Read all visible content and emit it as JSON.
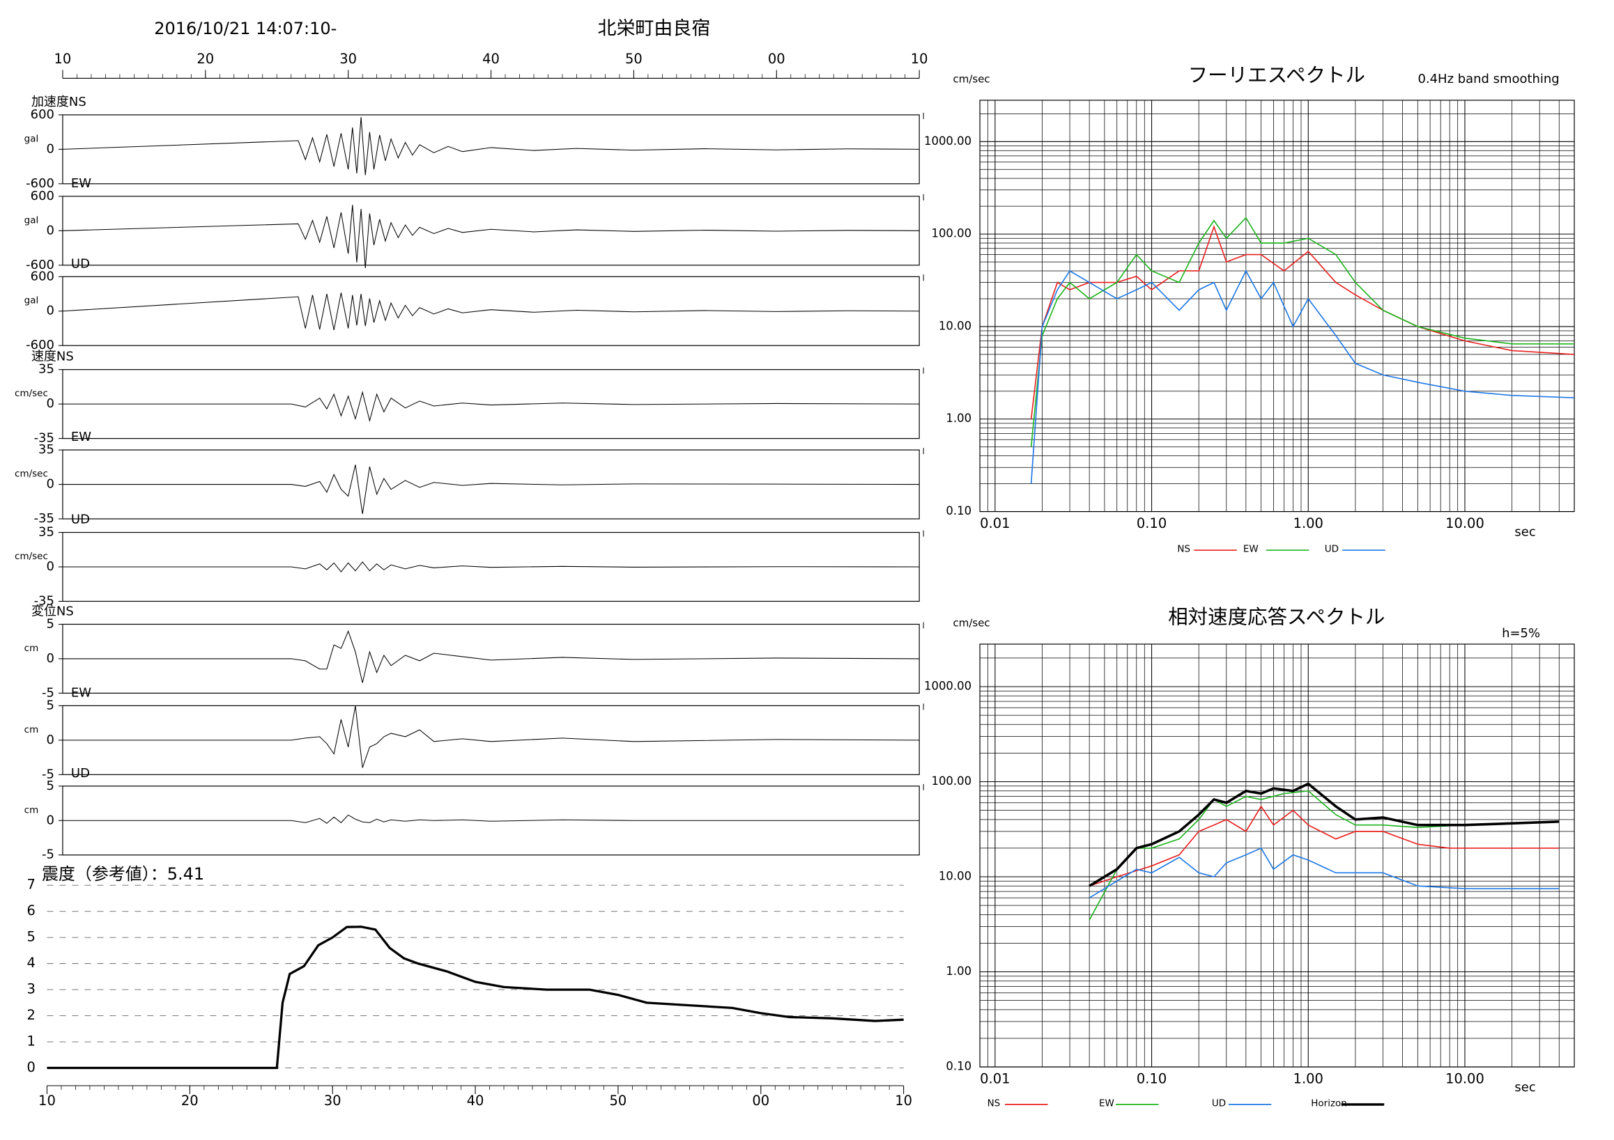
{
  "header": {
    "datetime": "2016/10/21 14:07:10-",
    "station": "北栄町由良宿"
  },
  "chart_data": [
    {
      "type": "line",
      "title": "加速度NS",
      "ylabel": "gal",
      "xlim": [
        0,
        60
      ],
      "ylim": [
        -600,
        600
      ],
      "yticks": [
        -600,
        0,
        600
      ],
      "xticks": [
        {
          "value": 0,
          "label": "10"
        },
        {
          "value": 10,
          "label": "20"
        },
        {
          "value": 20,
          "label": "30"
        },
        {
          "value": 30,
          "label": "40"
        },
        {
          "value": 40,
          "label": "50"
        },
        {
          "value": 50,
          "label": "00"
        },
        {
          "value": 60,
          "label": "10"
        }
      ],
      "x": [
        0,
        16.5,
        17,
        17.5,
        18,
        18.5,
        19,
        19.5,
        20,
        20.3,
        20.6,
        20.9,
        21.2,
        21.5,
        21.8,
        22.2,
        22.6,
        23,
        23.5,
        24,
        24.5,
        25,
        26,
        27,
        28,
        30,
        33,
        36,
        40,
        45,
        50,
        55,
        60
      ],
      "values": [
        0,
        150,
        -180,
        200,
        -220,
        260,
        -300,
        280,
        -350,
        380,
        -420,
        560,
        -450,
        300,
        -350,
        250,
        -200,
        180,
        -150,
        120,
        -100,
        80,
        -60,
        50,
        -40,
        30,
        -20,
        15,
        -15,
        10,
        -10,
        8,
        0
      ]
    },
    {
      "type": "line",
      "title": "EW",
      "ylabel": "gal",
      "xlim": [
        0,
        60
      ],
      "ylim": [
        -600,
        600
      ],
      "yticks": [
        -600,
        0,
        600
      ],
      "x": [
        0,
        16.5,
        17,
        17.5,
        18,
        18.5,
        19,
        19.5,
        20,
        20.3,
        20.6,
        20.9,
        21.2,
        21.5,
        21.8,
        22.2,
        22.6,
        23,
        23.5,
        24,
        24.5,
        25,
        26,
        27,
        28,
        30,
        33,
        36,
        40,
        45,
        50,
        55,
        60
      ],
      "values": [
        0,
        120,
        -150,
        180,
        -200,
        250,
        -300,
        320,
        -400,
        450,
        -550,
        380,
        -650,
        300,
        -250,
        200,
        -180,
        140,
        -120,
        100,
        -80,
        60,
        -50,
        40,
        -30,
        25,
        -20,
        15,
        -12,
        10,
        -8,
        6,
        0
      ]
    },
    {
      "type": "line",
      "title": "UD",
      "ylabel": "gal",
      "xlim": [
        0,
        60
      ],
      "ylim": [
        -600,
        600
      ],
      "yticks": [
        -600,
        0,
        600
      ],
      "x": [
        0,
        16.5,
        17,
        17.5,
        18,
        18.5,
        19,
        19.5,
        20,
        20.3,
        20.6,
        20.9,
        21.2,
        21.5,
        21.8,
        22.2,
        22.6,
        23,
        23.5,
        24,
        24.5,
        25,
        26,
        27,
        28,
        30,
        33,
        36,
        40,
        45,
        50,
        55,
        60
      ],
      "values": [
        0,
        250,
        -300,
        280,
        -320,
        300,
        -330,
        320,
        -300,
        280,
        -250,
        300,
        -260,
        220,
        -200,
        180,
        -160,
        140,
        -120,
        100,
        -80,
        60,
        -50,
        40,
        -30,
        25,
        -20,
        15,
        -12,
        10,
        -8,
        6,
        0
      ]
    },
    {
      "type": "line",
      "title": "速度NS",
      "ylabel": "cm/sec",
      "xlim": [
        0,
        60
      ],
      "ylim": [
        -35,
        35
      ],
      "yticks": [
        -35,
        0,
        35
      ],
      "x": [
        0,
        16,
        17,
        18,
        18.5,
        19,
        19.5,
        20,
        20.5,
        21,
        21.5,
        22,
        22.5,
        23,
        24,
        25,
        26,
        28,
        30,
        35,
        40,
        50,
        60
      ],
      "values": [
        0,
        0,
        -3,
        6,
        -5,
        10,
        -12,
        8,
        -15,
        12,
        -17,
        10,
        -8,
        6,
        -4,
        3,
        -2,
        1,
        -1,
        1,
        -0.5,
        0.5,
        0
      ]
    },
    {
      "type": "line",
      "title": "EW",
      "ylabel": "cm/sec",
      "xlim": [
        0,
        60
      ],
      "ylim": [
        -35,
        35
      ],
      "yticks": [
        -35,
        0,
        35
      ],
      "x": [
        0,
        16,
        17,
        18,
        18.5,
        19,
        19.5,
        20,
        20.5,
        21,
        21.5,
        22,
        22.5,
        23,
        24,
        25,
        26,
        28,
        30,
        35,
        40,
        50,
        60
      ],
      "values": [
        0,
        0,
        -2,
        3,
        -8,
        10,
        -5,
        -12,
        20,
        -30,
        18,
        -10,
        6,
        -5,
        4,
        -3,
        2,
        -1,
        1,
        -0.5,
        0.5,
        0.3,
        0
      ]
    },
    {
      "type": "line",
      "title": "UD",
      "ylabel": "cm/sec",
      "xlim": [
        0,
        60
      ],
      "ylim": [
        -35,
        35
      ],
      "yticks": [
        -35,
        0,
        35
      ],
      "x": [
        0,
        16,
        17,
        18,
        18.5,
        19,
        19.5,
        20,
        20.5,
        21,
        21.5,
        22,
        22.5,
        23,
        24,
        25,
        26,
        28,
        30,
        35,
        40,
        50,
        60
      ],
      "values": [
        0,
        0,
        -2,
        3,
        -3,
        4,
        -5,
        4,
        -4,
        5,
        -4,
        3,
        -3,
        2,
        -2,
        1.5,
        -1,
        1,
        -0.5,
        0.5,
        -0.3,
        0.2,
        0
      ]
    },
    {
      "type": "line",
      "title": "変位NS",
      "ylabel": "cm",
      "xlim": [
        0,
        60
      ],
      "ylim": [
        -5,
        5
      ],
      "yticks": [
        -5,
        0,
        5
      ],
      "x": [
        0,
        16,
        17,
        18,
        18.5,
        19,
        19.5,
        20,
        20.5,
        21,
        21.5,
        22,
        22.5,
        23,
        24,
        25,
        26,
        28,
        30,
        35,
        40,
        50,
        60
      ],
      "values": [
        0,
        0,
        -0.3,
        -1.5,
        -1.5,
        2,
        1.5,
        4,
        1,
        -3.5,
        1,
        -2,
        0.5,
        -1,
        0.5,
        -0.3,
        0.8,
        0.3,
        -0.2,
        0.2,
        -0.1,
        0.1,
        0
      ]
    },
    {
      "type": "line",
      "title": "EW",
      "ylabel": "cm",
      "xlim": [
        0,
        60
      ],
      "ylim": [
        -5,
        5
      ],
      "yticks": [
        -5,
        0,
        5
      ],
      "x": [
        0,
        16,
        17,
        18,
        18.5,
        19,
        19.5,
        20,
        20.5,
        21,
        21.5,
        22,
        22.5,
        23,
        24,
        25,
        26,
        28,
        30,
        35,
        40,
        50,
        60
      ],
      "values": [
        0,
        0,
        0.3,
        0.5,
        -0.5,
        -2,
        3,
        -1,
        5,
        -4,
        -1,
        -0.5,
        0.5,
        1,
        0.5,
        1.5,
        -0.2,
        0.2,
        -0.2,
        0.3,
        -0.2,
        0.1,
        0
      ]
    },
    {
      "type": "line",
      "title": "UD",
      "ylabel": "cm",
      "xlim": [
        0,
        60
      ],
      "ylim": [
        -5,
        5
      ],
      "yticks": [
        -5,
        0,
        5
      ],
      "x": [
        0,
        16,
        17,
        18,
        18.5,
        19,
        19.5,
        20,
        20.5,
        21,
        21.5,
        22,
        22.5,
        23,
        24,
        25,
        26,
        28,
        30,
        35,
        40,
        50,
        60
      ],
      "values": [
        0,
        0,
        -0.3,
        0.3,
        -0.4,
        0.5,
        -0.3,
        0.8,
        0.2,
        -0.2,
        -0.3,
        0.2,
        -0.2,
        0.1,
        -0.1,
        0.1,
        0,
        0.1,
        -0.1,
        0.1,
        0,
        0,
        0
      ]
    },
    {
      "type": "line",
      "title": "震度（参考値）：5.41",
      "xlim": [
        0,
        60
      ],
      "ylim": [
        0,
        7
      ],
      "yticks": [
        0,
        1,
        2,
        3,
        4,
        5,
        6,
        7
      ],
      "grid": true,
      "xticks": [
        {
          "value": 0,
          "label": "10"
        },
        {
          "value": 10,
          "label": "20"
        },
        {
          "value": 20,
          "label": "30"
        },
        {
          "value": 30,
          "label": "40"
        },
        {
          "value": 40,
          "label": "50"
        },
        {
          "value": 50,
          "label": "00"
        },
        {
          "value": 60,
          "label": "10"
        }
      ],
      "x": [
        0,
        16,
        16.1,
        16.5,
        17,
        18,
        19,
        20,
        21,
        22,
        23,
        24,
        25,
        26,
        28,
        30,
        32,
        35,
        38,
        40,
        42,
        45,
        48,
        50,
        52,
        55,
        58,
        60
      ],
      "values": [
        0,
        0,
        0,
        2.5,
        3.6,
        3.9,
        4.7,
        5.0,
        5.4,
        5.41,
        5.3,
        4.6,
        4.2,
        4.0,
        3.7,
        3.3,
        3.1,
        3.0,
        3.0,
        2.8,
        2.5,
        2.4,
        2.3,
        2.1,
        1.95,
        1.9,
        1.8,
        1.85
      ]
    },
    {
      "type": "line",
      "title": "フーリエスペクトル",
      "subtitle": "0.4Hz band smoothing",
      "ylabel": "cm/sec",
      "xlabel": "sec",
      "log_x": true,
      "log_y": true,
      "grid": true,
      "xlim": [
        0.008,
        50
      ],
      "ylim": [
        0.1,
        2800
      ],
      "xticks": [
        0.01,
        {
          "value": 0.1,
          "label": "0.10"
        },
        {
          "value": 1,
          "label": "1.00"
        },
        {
          "value": 10,
          "label": "10.00"
        }
      ],
      "yticks": [
        {
          "value": 0.1,
          "label": "0.10"
        },
        {
          "value": 1,
          "label": "1.00"
        },
        {
          "value": 10,
          "label": "10.00"
        },
        {
          "value": 100,
          "label": "100.00"
        },
        {
          "value": 1000,
          "label": "1000.00"
        }
      ],
      "series": [
        {
          "name": "NS",
          "color": "#e8201e",
          "x": [
            0.017,
            0.02,
            0.025,
            0.03,
            0.04,
            0.06,
            0.08,
            0.1,
            0.15,
            0.2,
            0.25,
            0.3,
            0.4,
            0.5,
            0.7,
            1.0,
            1.5,
            2,
            3,
            5,
            10,
            20,
            50
          ],
          "values": [
            1,
            10,
            30,
            25,
            30,
            30,
            35,
            25,
            40,
            40,
            120,
            50,
            60,
            60,
            40,
            65,
            30,
            22,
            15,
            10,
            7,
            5.5,
            5
          ]
        },
        {
          "name": "EW",
          "color": "#1eb41e",
          "x": [
            0.017,
            0.02,
            0.025,
            0.03,
            0.04,
            0.06,
            0.08,
            0.1,
            0.15,
            0.2,
            0.25,
            0.3,
            0.4,
            0.5,
            0.7,
            1.0,
            1.5,
            2,
            3,
            5,
            10,
            20,
            50
          ],
          "values": [
            0.5,
            8,
            20,
            30,
            20,
            30,
            60,
            40,
            30,
            80,
            140,
            90,
            150,
            80,
            80,
            90,
            60,
            30,
            15,
            10,
            7.5,
            6.5,
            6.5
          ]
        },
        {
          "name": "UD",
          "color": "#1e78e6",
          "x": [
            0.017,
            0.02,
            0.025,
            0.03,
            0.04,
            0.06,
            0.08,
            0.1,
            0.15,
            0.2,
            0.25,
            0.3,
            0.4,
            0.5,
            0.6,
            0.8,
            1.0,
            1.5,
            2,
            3,
            5,
            10,
            20,
            50
          ],
          "values": [
            0.2,
            10,
            25,
            40,
            30,
            20,
            25,
            30,
            15,
            25,
            30,
            15,
            40,
            20,
            30,
            10,
            20,
            8,
            4,
            3,
            2.5,
            2,
            1.8,
            1.7
          ]
        }
      ]
    },
    {
      "type": "line",
      "title": "相対速度応答スペクトル",
      "subtitle": "h=5%",
      "ylabel": "cm/sec",
      "xlabel": "sec",
      "log_x": true,
      "log_y": true,
      "grid": true,
      "xlim": [
        0.008,
        50
      ],
      "ylim": [
        0.1,
        2800
      ],
      "xticks": [
        0.01,
        {
          "value": 0.1,
          "label": "0.10"
        },
        {
          "value": 1,
          "label": "1.00"
        },
        {
          "value": 10,
          "label": "10.00"
        }
      ],
      "yticks": [
        {
          "value": 0.1,
          "label": "0.10"
        },
        {
          "value": 1,
          "label": "1.00"
        },
        {
          "value": 10,
          "label": "10.00"
        },
        {
          "value": 100,
          "label": "100.00"
        },
        {
          "value": 1000,
          "label": "1000.00"
        }
      ],
      "series": [
        {
          "name": "NS",
          "color": "#e8201e",
          "x": [
            0.04,
            0.06,
            0.1,
            0.15,
            0.2,
            0.25,
            0.3,
            0.4,
            0.5,
            0.6,
            0.8,
            1.0,
            1.5,
            2,
            3,
            5,
            8,
            40
          ],
          "values": [
            8,
            10,
            13,
            17,
            30,
            35,
            40,
            30,
            55,
            35,
            50,
            35,
            25,
            30,
            30,
            22,
            20,
            20
          ]
        },
        {
          "name": "EW",
          "color": "#1eb41e",
          "x": [
            0.04,
            0.06,
            0.08,
            0.1,
            0.15,
            0.2,
            0.25,
            0.3,
            0.4,
            0.5,
            0.7,
            1.0,
            1.5,
            2,
            3,
            5,
            10,
            40
          ],
          "values": [
            3.5,
            12,
            20,
            20,
            25,
            40,
            65,
            55,
            70,
            65,
            75,
            80,
            45,
            35,
            35,
            33,
            35,
            38
          ]
        },
        {
          "name": "UD",
          "color": "#1e78e6",
          "x": [
            0.04,
            0.06,
            0.08,
            0.1,
            0.15,
            0.2,
            0.25,
            0.3,
            0.4,
            0.5,
            0.6,
            0.8,
            1.0,
            1.5,
            2,
            3,
            5,
            10,
            40
          ],
          "values": [
            6,
            9,
            12,
            11,
            16,
            11,
            10,
            14,
            17,
            20,
            12,
            17,
            15,
            11,
            11,
            11,
            8,
            7.5,
            7.5
          ]
        },
        {
          "name": "Horizon",
          "color": "#000000",
          "x": [
            0.04,
            0.06,
            0.08,
            0.1,
            0.15,
            0.2,
            0.25,
            0.3,
            0.4,
            0.5,
            0.6,
            0.8,
            1.0,
            1.5,
            2,
            3,
            5,
            10,
            40
          ],
          "values": [
            8,
            12,
            20,
            22,
            30,
            45,
            65,
            60,
            80,
            75,
            85,
            80,
            95,
            55,
            40,
            42,
            35,
            35,
            38
          ]
        }
      ]
    }
  ]
}
